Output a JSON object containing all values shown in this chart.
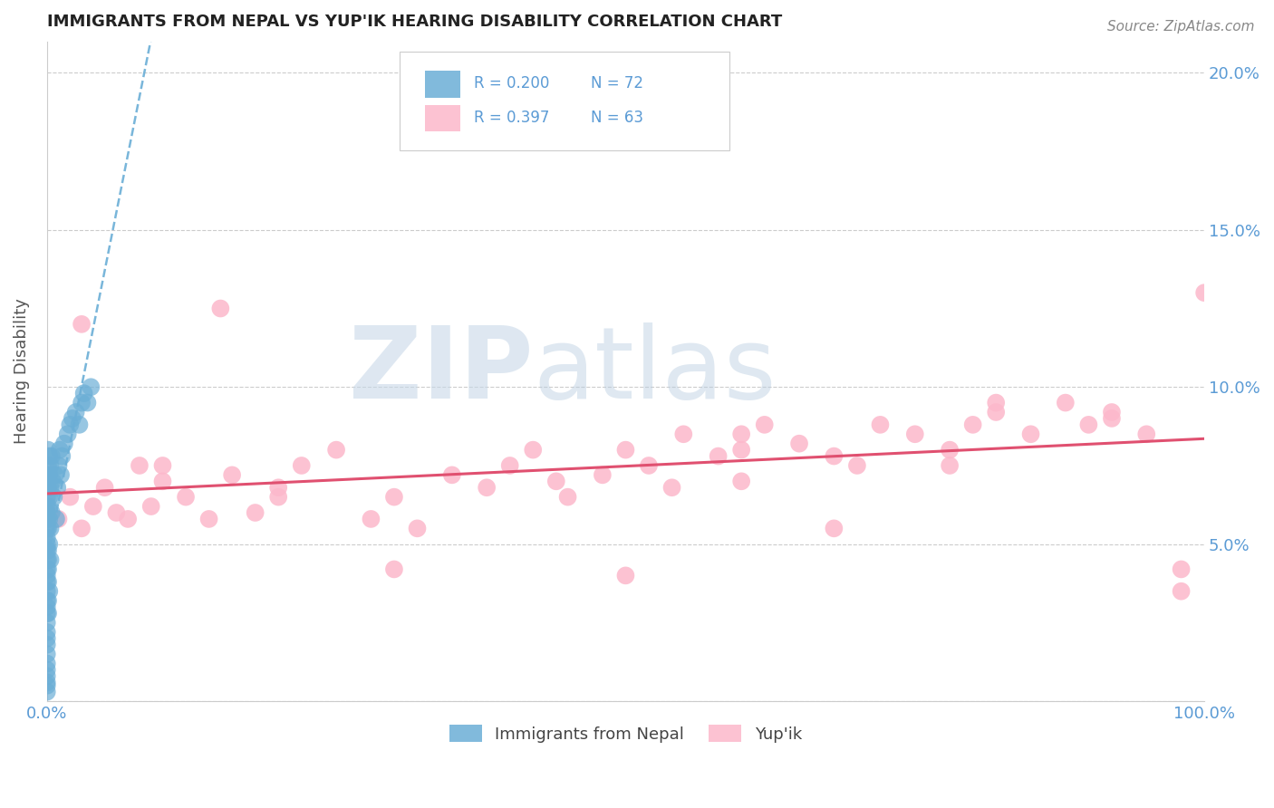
{
  "title": "IMMIGRANTS FROM NEPAL VS YUP'IK HEARING DISABILITY CORRELATION CHART",
  "source": "Source: ZipAtlas.com",
  "ylabel": "Hearing Disability",
  "xlim": [
    0.0,
    1.0
  ],
  "ylim": [
    0.0,
    0.21
  ],
  "ytick_values": [
    0.0,
    0.05,
    0.1,
    0.15,
    0.2
  ],
  "ytick_labels_left": [
    "",
    "",
    "",
    "",
    ""
  ],
  "ytick_labels_right": [
    "",
    "5.0%",
    "10.0%",
    "15.0%",
    "20.0%"
  ],
  "legend_r_nepal": "R = 0.200",
  "legend_n_nepal": "N = 72",
  "legend_r_yupik": "R = 0.397",
  "legend_n_yupik": "N = 63",
  "legend_label_nepal": "Immigrants from Nepal",
  "legend_label_yupik": "Yup'ik",
  "color_nepal": "#6baed6",
  "color_yupik": "#fcb8cb",
  "color_trendline_nepal": "#6baed6",
  "color_trendline_yupik": "#e05070",
  "background_color": "#ffffff",
  "grid_color": "#cccccc",
  "axis_color": "#5b9bd5",
  "title_color": "#222222",
  "ylabel_color": "#555555",
  "nepal_x": [
    0.0,
    0.0,
    0.0,
    0.0,
    0.0,
    0.0,
    0.0,
    0.0,
    0.0,
    0.0,
    0.0,
    0.0,
    0.0,
    0.0,
    0.0,
    0.0,
    0.0,
    0.0,
    0.0,
    0.0,
    0.0,
    0.0,
    0.0,
    0.0,
    0.0,
    0.0,
    0.0,
    0.0,
    0.0,
    0.0,
    0.001,
    0.001,
    0.001,
    0.001,
    0.001,
    0.001,
    0.001,
    0.001,
    0.001,
    0.001,
    0.001,
    0.002,
    0.002,
    0.002,
    0.002,
    0.002,
    0.002,
    0.003,
    0.003,
    0.003,
    0.003,
    0.004,
    0.004,
    0.005,
    0.006,
    0.007,
    0.008,
    0.009,
    0.01,
    0.011,
    0.012,
    0.013,
    0.015,
    0.018,
    0.02,
    0.022,
    0.025,
    0.028,
    0.03,
    0.032,
    0.035,
    0.038
  ],
  "nepal_y": [
    0.01,
    0.012,
    0.015,
    0.018,
    0.02,
    0.022,
    0.025,
    0.028,
    0.03,
    0.032,
    0.035,
    0.038,
    0.04,
    0.042,
    0.045,
    0.048,
    0.05,
    0.052,
    0.055,
    0.058,
    0.06,
    0.062,
    0.065,
    0.068,
    0.07,
    0.072,
    0.005,
    0.008,
    0.003,
    0.006,
    0.028,
    0.032,
    0.038,
    0.042,
    0.048,
    0.055,
    0.062,
    0.068,
    0.075,
    0.08,
    0.045,
    0.035,
    0.05,
    0.058,
    0.065,
    0.072,
    0.078,
    0.045,
    0.055,
    0.068,
    0.075,
    0.06,
    0.078,
    0.07,
    0.065,
    0.072,
    0.058,
    0.068,
    0.075,
    0.08,
    0.072,
    0.078,
    0.082,
    0.085,
    0.088,
    0.09,
    0.092,
    0.088,
    0.095,
    0.098,
    0.095,
    0.1
  ],
  "yupik_x": [
    0.0,
    0.01,
    0.02,
    0.03,
    0.04,
    0.05,
    0.06,
    0.07,
    0.08,
    0.09,
    0.1,
    0.12,
    0.14,
    0.15,
    0.16,
    0.18,
    0.2,
    0.22,
    0.25,
    0.28,
    0.3,
    0.32,
    0.35,
    0.38,
    0.4,
    0.42,
    0.44,
    0.45,
    0.48,
    0.5,
    0.52,
    0.54,
    0.55,
    0.58,
    0.6,
    0.6,
    0.6,
    0.62,
    0.65,
    0.68,
    0.7,
    0.72,
    0.75,
    0.78,
    0.78,
    0.8,
    0.82,
    0.85,
    0.88,
    0.9,
    0.92,
    0.95,
    0.98,
    1.0,
    0.03,
    0.1,
    0.2,
    0.3,
    0.5,
    0.68,
    0.82,
    0.92,
    0.98
  ],
  "yupik_y": [
    0.06,
    0.058,
    0.065,
    0.055,
    0.062,
    0.068,
    0.06,
    0.058,
    0.075,
    0.062,
    0.07,
    0.065,
    0.058,
    0.125,
    0.072,
    0.06,
    0.068,
    0.075,
    0.08,
    0.058,
    0.065,
    0.055,
    0.072,
    0.068,
    0.075,
    0.08,
    0.07,
    0.065,
    0.072,
    0.08,
    0.075,
    0.068,
    0.085,
    0.078,
    0.08,
    0.085,
    0.07,
    0.088,
    0.082,
    0.078,
    0.075,
    0.088,
    0.085,
    0.08,
    0.075,
    0.088,
    0.092,
    0.085,
    0.095,
    0.088,
    0.092,
    0.085,
    0.042,
    0.13,
    0.12,
    0.075,
    0.065,
    0.042,
    0.04,
    0.055,
    0.095,
    0.09,
    0.035
  ]
}
